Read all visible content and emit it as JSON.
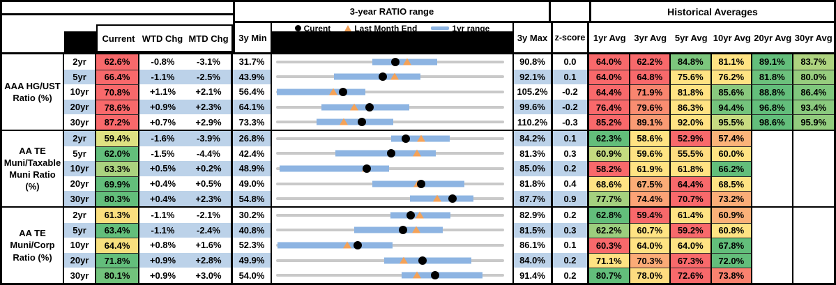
{
  "header": {
    "range_title": "3-year RATIO range",
    "hist_title": "Historical Averages",
    "col_current": "Current",
    "col_wtd": "WTD Chg",
    "col_mtd": "MTD Chg",
    "col_min": "3y Min",
    "col_max": "3y Max",
    "col_z": "z-score",
    "avg_cols": [
      "1yr Avg",
      "3yr Avg",
      "5yr Avg",
      "10yr Avg",
      "20yr Avg",
      "30yr Avg"
    ]
  },
  "legend": {
    "current": "Curent",
    "lme": "Last Month End",
    "range": "1yr range",
    "dot_icon": "legend-current-dot-icon",
    "triangle_icon": "legend-lme-triangle-icon",
    "bar_icon": "legend-range-bar-icon"
  },
  "colors": {
    "heat_red": "#F8696B",
    "heat_yellow": "#FFE383",
    "heat_green": "#63BE7B",
    "row_shade": "#BCD2E9",
    "range_bar": "#8DB4E2",
    "track_gray": "#C9C9C9",
    "marker_orange": "#F4A258",
    "marker_black": "#000000"
  },
  "chart_data": {
    "type": "table",
    "note": "Each row also renders a dot-range strip chart: gray track spans 3y Min..3y Max, blue bar = 1yr range, black dot = Current, orange triangle = Last Month End (Current - MTD Chg). Values in %.",
    "groups": [
      {
        "label": "AAA HG/UST\nRatio (%)",
        "rows": [
          {
            "tenor": "2yr",
            "shade": false,
            "current": {
              "v": "62.6%",
              "c": "#F8696B"
            },
            "wtd": "-0.8%",
            "mtd": "-3.1%",
            "min": "31.7%",
            "max": "90.8%",
            "z": "0.0",
            "chart": {
              "min": 31.7,
              "max": 90.8,
              "bar": [
                56.6,
                73.4
              ],
              "dot": 62.6,
              "tri": 65.7
            },
            "avgs": [
              {
                "v": "64.0%",
                "c": "#F8696B"
              },
              {
                "v": "62.2%",
                "c": "#F8696B"
              },
              {
                "v": "84.8%",
                "c": "#7CC67D"
              },
              {
                "v": "81.1%",
                "c": "#FFE383"
              },
              {
                "v": "89.1%",
                "c": "#63BE7B"
              },
              {
                "v": "83.7%",
                "c": "#AED37F"
              }
            ]
          },
          {
            "tenor": "5yr",
            "shade": true,
            "current": {
              "v": "66.4%",
              "c": "#F8696B"
            },
            "wtd": "-1.1%",
            "mtd": "-2.5%",
            "min": "43.9%",
            "max": "92.1%",
            "z": "0.1",
            "chart": {
              "min": 43.9,
              "max": 92.1,
              "bar": [
                56.2,
                74.4
              ],
              "dot": 66.4,
              "tri": 68.9
            },
            "avgs": [
              {
                "v": "64.0%",
                "c": "#F8696B"
              },
              {
                "v": "64.8%",
                "c": "#F8696B"
              },
              {
                "v": "75.6%",
                "c": "#FFE383"
              },
              {
                "v": "76.2%",
                "c": "#FFE383"
              },
              {
                "v": "81.8%",
                "c": "#6CC17C"
              },
              {
                "v": "80.0%",
                "c": "#97CD7E"
              }
            ]
          },
          {
            "tenor": "10yr",
            "shade": false,
            "current": {
              "v": "70.8%",
              "c": "#F8696B"
            },
            "wtd": "+1.1%",
            "mtd": "+2.1%",
            "min": "56.4%",
            "max": "105.2%",
            "z": "-0.2",
            "chart": {
              "min": 56.4,
              "max": 105.2,
              "bar": [
                56.6,
                75.5
              ],
              "dot": 70.8,
              "tri": 68.7
            },
            "avgs": [
              {
                "v": "64.4%",
                "c": "#F8696B"
              },
              {
                "v": "71.9%",
                "c": "#F9856F"
              },
              {
                "v": "81.8%",
                "c": "#FFE383"
              },
              {
                "v": "85.6%",
                "c": "#89C97E"
              },
              {
                "v": "88.8%",
                "c": "#63BE7B"
              },
              {
                "v": "86.4%",
                "c": "#7FC77D"
              }
            ]
          },
          {
            "tenor": "20yr",
            "shade": true,
            "current": {
              "v": "78.6%",
              "c": "#F8696B"
            },
            "wtd": "+0.9%",
            "mtd": "+2.3%",
            "min": "64.1%",
            "max": "99.6%",
            "z": "-0.2",
            "chart": {
              "min": 64.1,
              "max": 99.6,
              "bar": [
                71.2,
                84.8
              ],
              "dot": 78.6,
              "tri": 76.3
            },
            "avgs": [
              {
                "v": "76.4%",
                "c": "#F8696B"
              },
              {
                "v": "79.6%",
                "c": "#F98D71"
              },
              {
                "v": "86.3%",
                "c": "#FFE383"
              },
              {
                "v": "94.4%",
                "c": "#74C47C"
              },
              {
                "v": "96.8%",
                "c": "#63BE7B"
              },
              {
                "v": "93.4%",
                "c": "#8BCA7E"
              }
            ]
          },
          {
            "tenor": "30yr",
            "shade": false,
            "current": {
              "v": "87.2%",
              "c": "#F8696B"
            },
            "wtd": "+0.7%",
            "mtd": "+2.9%",
            "min": "73.3%",
            "max": "110.2%",
            "z": "-0.3",
            "chart": {
              "min": 73.3,
              "max": 110.2,
              "bar": [
                79.9,
                92.3
              ],
              "dot": 87.2,
              "tri": 84.3
            },
            "avgs": [
              {
                "v": "85.2%",
                "c": "#F8696B"
              },
              {
                "v": "89.1%",
                "c": "#FA9B74"
              },
              {
                "v": "92.0%",
                "c": "#FFE383"
              },
              {
                "v": "95.5%",
                "c": "#C8DB81"
              },
              {
                "v": "98.6%",
                "c": "#63BE7B"
              },
              {
                "v": "95.9%",
                "c": "#93CC7E"
              }
            ]
          }
        ]
      },
      {
        "label": "AA TE\nMuni/Taxable\nMuni Ratio\n(%)",
        "rows": [
          {
            "tenor": "2yr",
            "shade": true,
            "current": {
              "v": "59.4%",
              "c": "#DFE182"
            },
            "wtd": "-1.6%",
            "mtd": "-3.9%",
            "min": "26.8%",
            "max": "84.2%",
            "z": "0.1",
            "chart": {
              "min": 26.8,
              "max": 84.2,
              "bar": [
                55.7,
                70.5
              ],
              "dot": 59.4,
              "tri": 63.3
            },
            "avgs": [
              {
                "v": "62.3%",
                "c": "#63BE7B"
              },
              {
                "v": "58.6%",
                "c": "#FFE383"
              },
              {
                "v": "52.9%",
                "c": "#F8696B"
              },
              {
                "v": "57.4%",
                "c": "#FBB379"
              },
              null,
              null
            ]
          },
          {
            "tenor": "5yr",
            "shade": false,
            "current": {
              "v": "62.0%",
              "c": "#63BE7B"
            },
            "wtd": "-1.5%",
            "mtd": "-4.4%",
            "min": "42.4%",
            "max": "81.3%",
            "z": "0.3",
            "chart": {
              "min": 42.4,
              "max": 81.3,
              "bar": [
                52.5,
                69.6
              ],
              "dot": 62.0,
              "tri": 66.4
            },
            "avgs": [
              {
                "v": "60.9%",
                "c": "#C4DA80"
              },
              {
                "v": "59.6%",
                "c": "#FFE383"
              },
              {
                "v": "55.5%",
                "c": "#FEDC80"
              },
              {
                "v": "60.0%",
                "c": "#FFE383"
              },
              null,
              null
            ]
          },
          {
            "tenor": "10yr",
            "shade": true,
            "current": {
              "v": "63.3%",
              "c": "#ABD37F"
            },
            "wtd": "+0.5%",
            "mtd": "+0.2%",
            "min": "48.9%",
            "max": "85.0%",
            "z": "0.2",
            "chart": {
              "min": 48.9,
              "max": 85.0,
              "bar": [
                49.4,
                66.8
              ],
              "dot": 63.3,
              "tri": 63.1
            },
            "avgs": [
              {
                "v": "58.2%",
                "c": "#F8696B"
              },
              {
                "v": "61.9%",
                "c": "#FFE383"
              },
              {
                "v": "61.8%",
                "c": "#FFE383"
              },
              {
                "v": "66.2%",
                "c": "#63BE7B"
              },
              null,
              null
            ]
          },
          {
            "tenor": "20yr",
            "shade": false,
            "current": {
              "v": "69.9%",
              "c": "#63BE7B"
            },
            "wtd": "+0.4%",
            "mtd": "+0.5%",
            "min": "49.0%",
            "max": "81.8%",
            "z": "0.4",
            "chart": {
              "min": 49.0,
              "max": 81.8,
              "bar": [
                62.8,
                76.1
              ],
              "dot": 69.9,
              "tri": 69.4
            },
            "avgs": [
              {
                "v": "68.6%",
                "c": "#FFE383"
              },
              {
                "v": "67.5%",
                "c": "#FBAC77"
              },
              {
                "v": "64.4%",
                "c": "#F8696B"
              },
              {
                "v": "68.5%",
                "c": "#FFE383"
              },
              null,
              null
            ]
          },
          {
            "tenor": "30yr",
            "shade": true,
            "current": {
              "v": "80.3%",
              "c": "#63BE7B"
            },
            "wtd": "+0.4%",
            "mtd": "+2.3%",
            "min": "54.8%",
            "max": "87.7%",
            "z": "0.9",
            "chart": {
              "min": 54.8,
              "max": 87.7,
              "bar": [
                74.1,
                83.3
              ],
              "dot": 80.3,
              "tri": 78.0
            },
            "avgs": [
              {
                "v": "77.7%",
                "c": "#A5D17F"
              },
              {
                "v": "74.4%",
                "c": "#FBA376"
              },
              {
                "v": "70.7%",
                "c": "#F8696B"
              },
              {
                "v": "73.2%",
                "c": "#FBAD78"
              },
              null,
              null
            ]
          }
        ]
      },
      {
        "label": "AA TE\nMuni/Corp\nRatio (%)",
        "rows": [
          {
            "tenor": "2yr",
            "shade": false,
            "current": {
              "v": "61.3%",
              "c": "#FADF7E"
            },
            "wtd": "-1.1%",
            "mtd": "-2.1%",
            "min": "30.2%",
            "max": "82.9%",
            "z": "0.2",
            "chart": {
              "min": 30.2,
              "max": 82.9,
              "bar": [
                56.7,
                70.5
              ],
              "dot": 61.3,
              "tri": 63.4
            },
            "avgs": [
              {
                "v": "62.8%",
                "c": "#63BE7B"
              },
              {
                "v": "59.4%",
                "c": "#F8696B"
              },
              {
                "v": "61.4%",
                "c": "#FFE383"
              },
              {
                "v": "60.9%",
                "c": "#FBB179"
              },
              null,
              null
            ]
          },
          {
            "tenor": "5yr",
            "shade": true,
            "current": {
              "v": "63.4%",
              "c": "#63BE7B"
            },
            "wtd": "-1.1%",
            "mtd": "-2.4%",
            "min": "40.8%",
            "max": "81.5%",
            "z": "0.3",
            "chart": {
              "min": 40.8,
              "max": 81.5,
              "bar": [
                54.8,
                70.6
              ],
              "dot": 63.4,
              "tri": 65.8
            },
            "avgs": [
              {
                "v": "62.2%",
                "c": "#9CCE7E"
              },
              {
                "v": "60.7%",
                "c": "#FFE383"
              },
              {
                "v": "59.2%",
                "c": "#F8696B"
              },
              {
                "v": "60.8%",
                "c": "#FFE383"
              },
              null,
              null
            ]
          },
          {
            "tenor": "10yr",
            "shade": false,
            "current": {
              "v": "64.4%",
              "c": "#F7E07E"
            },
            "wtd": "+0.8%",
            "mtd": "+1.6%",
            "min": "52.3%",
            "max": "86.1%",
            "z": "0.1",
            "chart": {
              "min": 52.3,
              "max": 86.1,
              "bar": [
                52.5,
                69.6
              ],
              "dot": 64.4,
              "tri": 62.8
            },
            "avgs": [
              {
                "v": "60.3%",
                "c": "#F8696B"
              },
              {
                "v": "64.0%",
                "c": "#FFE383"
              },
              {
                "v": "64.0%",
                "c": "#FFE383"
              },
              {
                "v": "67.8%",
                "c": "#63BE7B"
              },
              null,
              null
            ]
          },
          {
            "tenor": "20yr",
            "shade": true,
            "current": {
              "v": "71.8%",
              "c": "#63BE7B"
            },
            "wtd": "+0.9%",
            "mtd": "+2.8%",
            "min": "49.9%",
            "max": "84.0%",
            "z": "0.2",
            "chart": {
              "min": 49.9,
              "max": 84.0,
              "bar": [
                66.1,
                79.1
              ],
              "dot": 71.8,
              "tri": 69.0
            },
            "avgs": [
              {
                "v": "71.1%",
                "c": "#FFE383"
              },
              {
                "v": "70.3%",
                "c": "#FBAB77"
              },
              {
                "v": "67.3%",
                "c": "#F8696B"
              },
              {
                "v": "72.0%",
                "c": "#63BE7B"
              },
              null,
              null
            ]
          },
          {
            "tenor": "30yr",
            "shade": false,
            "current": {
              "v": "80.1%",
              "c": "#72C37C"
            },
            "wtd": "+0.9%",
            "mtd": "+3.0%",
            "min": "54.0%",
            "max": "91.4%",
            "z": "0.2",
            "chart": {
              "min": 54.0,
              "max": 91.4,
              "bar": [
                74.6,
                87.9
              ],
              "dot": 80.1,
              "tri": 77.1
            },
            "avgs": [
              {
                "v": "80.7%",
                "c": "#63BE7B"
              },
              {
                "v": "78.0%",
                "c": "#FEDC80"
              },
              {
                "v": "72.6%",
                "c": "#F8696B"
              },
              {
                "v": "73.8%",
                "c": "#F9826F"
              },
              null,
              null
            ]
          }
        ]
      }
    ]
  }
}
